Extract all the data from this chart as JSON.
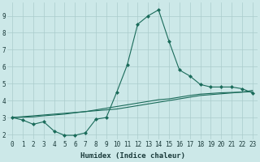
{
  "xlabel": "Humidex (Indice chaleur)",
  "background_color": "#cce8e8",
  "line_color": "#1a6b5a",
  "x_jagged": [
    0,
    1,
    2,
    3,
    4,
    5,
    6,
    7,
    8,
    9,
    10,
    11,
    12,
    13,
    14,
    15,
    16,
    17,
    18,
    19,
    20,
    21,
    22,
    23
  ],
  "y_jagged": [
    3.0,
    2.85,
    2.6,
    2.75,
    2.2,
    1.95,
    1.95,
    2.1,
    2.9,
    3.0,
    4.5,
    6.1,
    8.5,
    9.0,
    9.35,
    7.5,
    5.8,
    5.45,
    4.95,
    4.8,
    4.8,
    4.8,
    4.7,
    4.45
  ],
  "x_smooth1": [
    0,
    1,
    2,
    3,
    4,
    5,
    6,
    7,
    8,
    9,
    10,
    11,
    12,
    13,
    14,
    15,
    16,
    17,
    18,
    19,
    20,
    21,
    22,
    23
  ],
  "y_smooth1": [
    3.0,
    3.05,
    3.1,
    3.15,
    3.2,
    3.25,
    3.3,
    3.35,
    3.4,
    3.45,
    3.5,
    3.6,
    3.7,
    3.8,
    3.9,
    4.0,
    4.1,
    4.2,
    4.3,
    4.35,
    4.4,
    4.45,
    4.5,
    4.6
  ],
  "x_smooth2": [
    0,
    1,
    2,
    3,
    4,
    5,
    6,
    7,
    8,
    9,
    10,
    11,
    12,
    13,
    14,
    15,
    16,
    17,
    18,
    19,
    20,
    21,
    22,
    23
  ],
  "y_smooth2": [
    3.0,
    3.02,
    3.04,
    3.1,
    3.15,
    3.2,
    3.28,
    3.35,
    3.45,
    3.55,
    3.65,
    3.75,
    3.85,
    3.95,
    4.05,
    4.1,
    4.2,
    4.3,
    4.38,
    4.42,
    4.46,
    4.48,
    4.5,
    4.52
  ],
  "xlim": [
    -0.5,
    23.5
  ],
  "ylim": [
    1.7,
    9.8
  ],
  "yticks": [
    2,
    3,
    4,
    5,
    6,
    7,
    8,
    9
  ],
  "xticks": [
    0,
    1,
    2,
    3,
    4,
    5,
    6,
    7,
    8,
    9,
    10,
    11,
    12,
    13,
    14,
    15,
    16,
    17,
    18,
    19,
    20,
    21,
    22,
    23
  ],
  "grid_color": "#aacccc",
  "font_color": "#1a3a3a",
  "xlabel_fontsize": 6.5,
  "tick_fontsize": 5.5
}
